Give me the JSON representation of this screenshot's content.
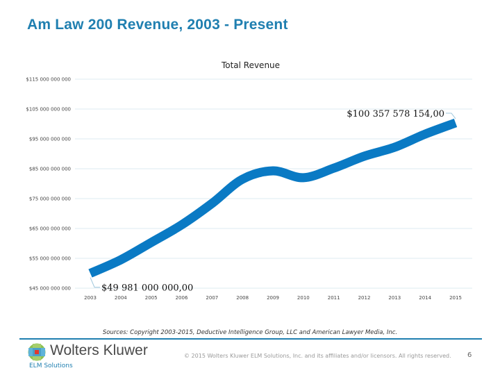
{
  "slide": {
    "title": "Am Law 200 Revenue, 2003 - Present",
    "sources": "Sources:  Copyright 2003-2015, Deductive Intelligence Group, LLC and American Lawyer Media, Inc.",
    "brand_name": "Wolters Kluwer",
    "brand_sub": "ELM Solutions",
    "copyright": "© 2015 Wolters Kluwer ELM Solutions, Inc. and its affiliates and/or licensors.  All rights reserved.",
    "page_number": "6",
    "accent_color": "#1f7fb0",
    "line_color": "#0a7ac4"
  },
  "chart_data": {
    "type": "line",
    "title": "Total Revenue",
    "xlabel": "",
    "ylabel": "",
    "categories": [
      "2003",
      "2004",
      "2005",
      "2006",
      "2007",
      "2008",
      "2009",
      "2010",
      "2011",
      "2012",
      "2013",
      "2014",
      "2015"
    ],
    "series": [
      {
        "name": "Total Revenue",
        "values": [
          49981000000,
          54500000000,
          60300000000,
          66200000000,
          73400000000,
          81500000000,
          84300000000,
          82000000000,
          85200000000,
          89200000000,
          92200000000,
          96600000000,
          100357578154
        ]
      }
    ],
    "ylim": [
      45000000000,
      115000000000
    ],
    "yticks": [
      45000000000,
      55000000000,
      65000000000,
      75000000000,
      85000000000,
      95000000000,
      105000000000,
      115000000000
    ],
    "ytick_labels": [
      "$45 000 000 000",
      "$55 000 000 000",
      "$65 000 000 000",
      "$75 000 000 000",
      "$85 000 000 000",
      "$95 000 000 000",
      "$105 000 000 000",
      "$115 000 000 000"
    ],
    "grid": true,
    "legend": "none",
    "annotations": [
      {
        "category": "2003",
        "text": "$49 981 000 000,00"
      },
      {
        "category": "2015",
        "text": "$100 357 578 154,00"
      }
    ]
  }
}
